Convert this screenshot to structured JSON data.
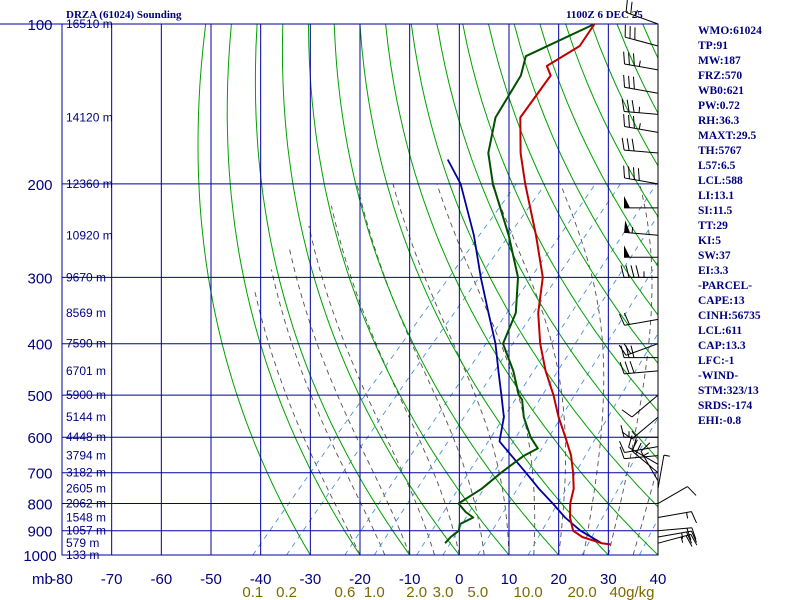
{
  "header": {
    "title": "DRZA (61024) Sounding",
    "timestamp": "1100Z  6 DEC 25"
  },
  "indices": [
    "WMO:61024",
    "TP:91",
    "MW:187",
    "FRZ:570",
    "WB0:621",
    "PW:0.72",
    "RH:36.3",
    "MAXT:29.5",
    "TH:5767",
    "L57:6.5",
    "LCL:588",
    "LI:13.1",
    "SI:11.5",
    "TT:29",
    "KI:5",
    "SW:37",
    "EI:3.3",
    "-PARCEL-",
    "CAPE:13",
    "CINH:56735",
    "LCL:611",
    "CAP:13.3",
    "LFC:-1",
    "-WIND-",
    "STM:323/13",
    "SRDS:-174",
    "EHI:-0.8"
  ],
  "colors": {
    "grid": "#0000a0",
    "isotherm_frame": "#0000a0",
    "dry_adiabat": "#00a000",
    "moist_adiabat": "#505050",
    "mixing_ratio": "#4a90d9",
    "temperature": "#c00000",
    "dewpoint": "#005000",
    "parcel": "#0000a0",
    "axis_text": "#000080",
    "mixing_text": "#7a6a00",
    "height_text": "#000080"
  },
  "chart_data": {
    "type": "skew-t log-p",
    "x_axis": {
      "unit_label": "mb",
      "ticks": [
        -80,
        -70,
        -60,
        -50,
        -40,
        -30,
        -20,
        -10,
        0,
        10,
        20,
        30,
        40
      ],
      "tick_labels": [
        "-80",
        "-70",
        "-60",
        "-50",
        "-40",
        "-30",
        "-20",
        "-10",
        "0",
        "10",
        "20",
        "30",
        "40"
      ]
    },
    "pressure_axis": {
      "ticks": [
        100,
        200,
        300,
        400,
        500,
        600,
        700,
        800,
        900,
        1000
      ],
      "tick_labels": [
        "100",
        "200",
        "300",
        "400",
        "500",
        "600",
        "700",
        "800",
        "900",
        "1000"
      ]
    },
    "height_labels": [
      {
        "p": 100,
        "text": "16510 m"
      },
      {
        "p": 150,
        "text": "14120 m"
      },
      {
        "p": 200,
        "text": "12360 m"
      },
      {
        "p": 250,
        "text": "10920 m"
      },
      {
        "p": 300,
        "text": "9670 m"
      },
      {
        "p": 350,
        "text": "8569 m"
      },
      {
        "p": 400,
        "text": "7590 m"
      },
      {
        "p": 450,
        "text": "6701 m"
      },
      {
        "p": 500,
        "text": "5900 m"
      },
      {
        "p": 550,
        "text": "5144 m"
      },
      {
        "p": 600,
        "text": "4448 m"
      },
      {
        "p": 650,
        "text": "3794 m"
      },
      {
        "p": 700,
        "text": "3182 m"
      },
      {
        "p": 750,
        "text": "2605 m"
      },
      {
        "p": 800,
        "text": "2062 m"
      },
      {
        "p": 850,
        "text": "1548 m"
      },
      {
        "p": 900,
        "text": "1057 m"
      },
      {
        "p": 950,
        "text": "579 m"
      },
      {
        "p": 1000,
        "text": "133 m"
      }
    ],
    "mixing_ratio_labels": [
      "0.1",
      "0.2",
      "0.6",
      "1.0",
      "2.0",
      "3.0",
      "5.0",
      "10.0",
      "20.0",
      "40g/kg"
    ],
    "mixing_ratio_values": [
      0.1,
      0.2,
      0.6,
      1.0,
      2.0,
      3.0,
      5.0,
      10.0,
      20.0,
      40.0
    ],
    "temperature": [
      {
        "p": 955,
        "t": 28.5
      },
      {
        "p": 950,
        "t": 26.5
      },
      {
        "p": 925,
        "t": 21.5
      },
      {
        "p": 900,
        "t": 18.5
      },
      {
        "p": 850,
        "t": 15.5
      },
      {
        "p": 800,
        "t": 13.0
      },
      {
        "p": 750,
        "t": 11.0
      },
      {
        "p": 700,
        "t": 8.0
      },
      {
        "p": 650,
        "t": 4.5
      },
      {
        "p": 600,
        "t": 0.0
      },
      {
        "p": 550,
        "t": -5.0
      },
      {
        "p": 500,
        "t": -10.0
      },
      {
        "p": 450,
        "t": -16.0
      },
      {
        "p": 400,
        "t": -22.0
      },
      {
        "p": 350,
        "t": -28.0
      },
      {
        "p": 300,
        "t": -33.5
      },
      {
        "p": 250,
        "t": -42.5
      },
      {
        "p": 200,
        "t": -54.0
      },
      {
        "p": 175,
        "t": -60.5
      },
      {
        "p": 150,
        "t": -67.0
      },
      {
        "p": 125,
        "t": -68.5
      },
      {
        "p": 120,
        "t": -71.0
      },
      {
        "p": 110,
        "t": -68.0
      },
      {
        "p": 100,
        "t": -69.0
      }
    ],
    "dewpoint": [
      {
        "p": 950,
        "t": -5.0
      },
      {
        "p": 925,
        "t": -5.0
      },
      {
        "p": 900,
        "t": -4.5
      },
      {
        "p": 875,
        "t": -5.5
      },
      {
        "p": 850,
        "t": -4.0
      },
      {
        "p": 830,
        "t": -6.5
      },
      {
        "p": 800,
        "t": -9.5
      },
      {
        "p": 750,
        "t": -7.5
      },
      {
        "p": 700,
        "t": -6.5
      },
      {
        "p": 650,
        "t": -5.0
      },
      {
        "p": 630,
        "t": -3.5
      },
      {
        "p": 600,
        "t": -7.0
      },
      {
        "p": 550,
        "t": -12.0
      },
      {
        "p": 510,
        "t": -15.5
      },
      {
        "p": 500,
        "t": -17.0
      },
      {
        "p": 450,
        "t": -22.5
      },
      {
        "p": 400,
        "t": -29.5
      },
      {
        "p": 350,
        "t": -32.5
      },
      {
        "p": 300,
        "t": -38.5
      },
      {
        "p": 250,
        "t": -48.0
      },
      {
        "p": 200,
        "t": -60.5
      },
      {
        "p": 175,
        "t": -67.0
      },
      {
        "p": 150,
        "t": -72.0
      },
      {
        "p": 125,
        "t": -74.5
      },
      {
        "p": 115,
        "t": -77.0
      },
      {
        "p": 100,
        "t": -69.0
      }
    ],
    "parcel": [
      {
        "p": 950,
        "t": 26.5
      },
      {
        "p": 900,
        "t": 20.0
      },
      {
        "p": 850,
        "t": 14.5
      },
      {
        "p": 800,
        "t": 9.5
      },
      {
        "p": 750,
        "t": 4.0
      },
      {
        "p": 700,
        "t": -1.5
      },
      {
        "p": 650,
        "t": -7.5
      },
      {
        "p": 611,
        "t": -12.5
      },
      {
        "p": 550,
        "t": -16.0
      },
      {
        "p": 500,
        "t": -20.5
      },
      {
        "p": 450,
        "t": -25.5
      },
      {
        "p": 400,
        "t": -31.0
      },
      {
        "p": 350,
        "t": -38.0
      },
      {
        "p": 300,
        "t": -46.0
      },
      {
        "p": 250,
        "t": -55.0
      },
      {
        "p": 200,
        "t": -67.0
      },
      {
        "p": 180,
        "t": -74.0
      }
    ],
    "wind_barbs": [
      {
        "p": 100,
        "dir": 290,
        "kt": 25
      },
      {
        "p": 110,
        "dir": 285,
        "kt": 30
      },
      {
        "p": 122,
        "dir": 280,
        "kt": 35
      },
      {
        "p": 135,
        "dir": 280,
        "kt": 30
      },
      {
        "p": 148,
        "dir": 275,
        "kt": 35
      },
      {
        "p": 160,
        "dir": 280,
        "kt": 35
      },
      {
        "p": 175,
        "dir": 275,
        "kt": 30
      },
      {
        "p": 200,
        "dir": 280,
        "kt": 40
      },
      {
        "p": 222,
        "dir": 270,
        "kt": 50
      },
      {
        "p": 250,
        "dir": 275,
        "kt": 55
      },
      {
        "p": 275,
        "dir": 270,
        "kt": 50
      },
      {
        "p": 300,
        "dir": 270,
        "kt": 45
      },
      {
        "p": 360,
        "dir": 260,
        "kt": 20
      },
      {
        "p": 400,
        "dir": 250,
        "kt": 20
      },
      {
        "p": 425,
        "dir": 270,
        "kt": 30
      },
      {
        "p": 450,
        "dir": 265,
        "kt": 30
      },
      {
        "p": 500,
        "dir": 230,
        "kt": 10
      },
      {
        "p": 550,
        "dir": 230,
        "kt": 15
      },
      {
        "p": 600,
        "dir": 270,
        "kt": 15
      },
      {
        "p": 625,
        "dir": 260,
        "kt": 10
      },
      {
        "p": 650,
        "dir": 265,
        "kt": 10
      },
      {
        "p": 675,
        "dir": 300,
        "kt": 20
      },
      {
        "p": 700,
        "dir": 310,
        "kt": 20
      },
      {
        "p": 725,
        "dir": 330,
        "kt": 15
      },
      {
        "p": 750,
        "dir": 10,
        "kt": 5
      },
      {
        "p": 800,
        "dir": 60,
        "kt": 10
      },
      {
        "p": 850,
        "dir": 80,
        "kt": 15
      },
      {
        "p": 900,
        "dir": 85,
        "kt": 20
      },
      {
        "p": 925,
        "dir": 80,
        "kt": 25
      },
      {
        "p": 950,
        "dir": 75,
        "kt": 25
      }
    ]
  }
}
